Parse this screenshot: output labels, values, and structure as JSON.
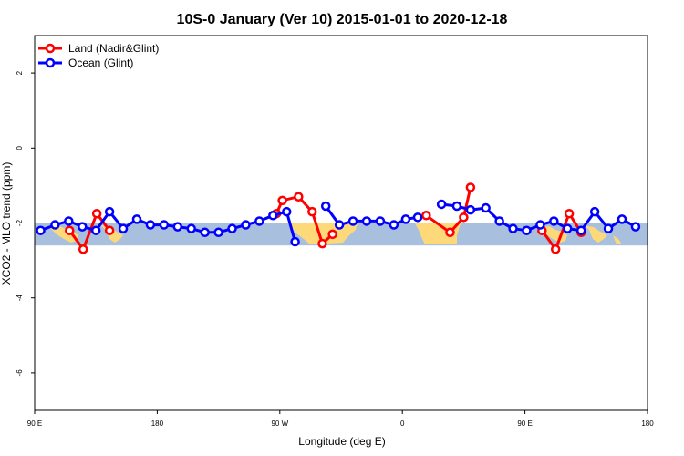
{
  "chart_data": {
    "type": "line",
    "title": "10S-0 January (Ver 10)   2015-01-01 to 2020-12-18",
    "xlabel": "Longitude (deg E)",
    "ylabel": "XCO2 - MLO trend (ppm)",
    "xlim": [
      90,
      450
    ],
    "ylim": [
      -7,
      3
    ],
    "x_ticks": [
      {
        "value": 90,
        "label": "90 E"
      },
      {
        "value": 162,
        "label": "180"
      },
      {
        "value": 234,
        "label": "90 W"
      },
      {
        "value": 306,
        "label": "0"
      },
      {
        "value": 378,
        "label": "90 E"
      },
      {
        "value": 450,
        "label": "180"
      }
    ],
    "y_ticks": [
      {
        "value": 2,
        "label": "2"
      },
      {
        "value": 0,
        "label": "0"
      },
      {
        "value": -2,
        "label": "-2"
      },
      {
        "value": -4,
        "label": "-4"
      },
      {
        "value": -6,
        "label": "-6"
      }
    ],
    "grid": false,
    "legend_position": "top-left",
    "background_map": {
      "band_y": [
        -2.6,
        -2.0
      ],
      "ocean_color": "#a8bfde",
      "land_color": "#fdd97a"
    },
    "series": [
      {
        "name": "Land (Nadir&Glint)",
        "color": "#ff0000",
        "segments": [
          [
            [
              110.5,
              -2.2
            ],
            [
              118.5,
              -2.7
            ],
            [
              126.5,
              -1.75
            ],
            [
              134,
              -2.2
            ]
          ],
          [
            [
              232,
              -1.75
            ],
            [
              235.5,
              -1.4
            ],
            [
              245,
              -1.3
            ],
            [
              253,
              -1.7
            ],
            [
              259,
              -2.55
            ],
            [
              265,
              -2.3
            ]
          ],
          [
            [
              320,
              -1.8
            ],
            [
              334,
              -2.25
            ],
            [
              342,
              -1.85
            ],
            [
              346,
              -1.05
            ]
          ],
          [
            [
              388,
              -2.2
            ],
            [
              396,
              -2.7
            ],
            [
              404,
              -1.75
            ],
            [
              411,
              -2.25
            ]
          ]
        ]
      },
      {
        "name": "Ocean (Glint)",
        "color": "#0000ff",
        "segments": [
          [
            [
              93.5,
              -2.2
            ],
            [
              102,
              -2.05
            ],
            [
              110,
              -1.95
            ],
            [
              118,
              -2.1
            ],
            [
              126,
              -2.2
            ],
            [
              134,
              -1.7
            ],
            [
              142,
              -2.15
            ],
            [
              150,
              -1.9
            ],
            [
              158,
              -2.05
            ],
            [
              166,
              -2.05
            ],
            [
              174,
              -2.1
            ],
            [
              182,
              -2.15
            ],
            [
              190,
              -2.25
            ],
            [
              198,
              -2.25
            ],
            [
              206,
              -2.15
            ],
            [
              214,
              -2.05
            ],
            [
              222,
              -1.95
            ],
            [
              230,
              -1.8
            ],
            [
              238,
              -1.7
            ],
            [
              243,
              -2.5
            ]
          ],
          [
            [
              261,
              -1.55
            ],
            [
              269,
              -2.05
            ],
            [
              277,
              -1.95
            ],
            [
              285,
              -1.95
            ],
            [
              293,
              -1.95
            ],
            [
              301,
              -2.05
            ],
            [
              308,
              -1.9
            ],
            [
              315,
              -1.85
            ]
          ],
          [
            [
              329,
              -1.5
            ],
            [
              338,
              -1.55
            ],
            [
              346,
              -1.65
            ],
            [
              355,
              -1.6
            ],
            [
              363,
              -1.95
            ],
            [
              371,
              -2.15
            ],
            [
              379,
              -2.2
            ],
            [
              387,
              -2.05
            ],
            [
              395,
              -1.95
            ],
            [
              403,
              -2.15
            ],
            [
              411,
              -2.2
            ],
            [
              419,
              -1.7
            ],
            [
              427,
              -2.15
            ],
            [
              435,
              -1.9
            ],
            [
              443,
              -2.1
            ]
          ]
        ]
      }
    ]
  }
}
